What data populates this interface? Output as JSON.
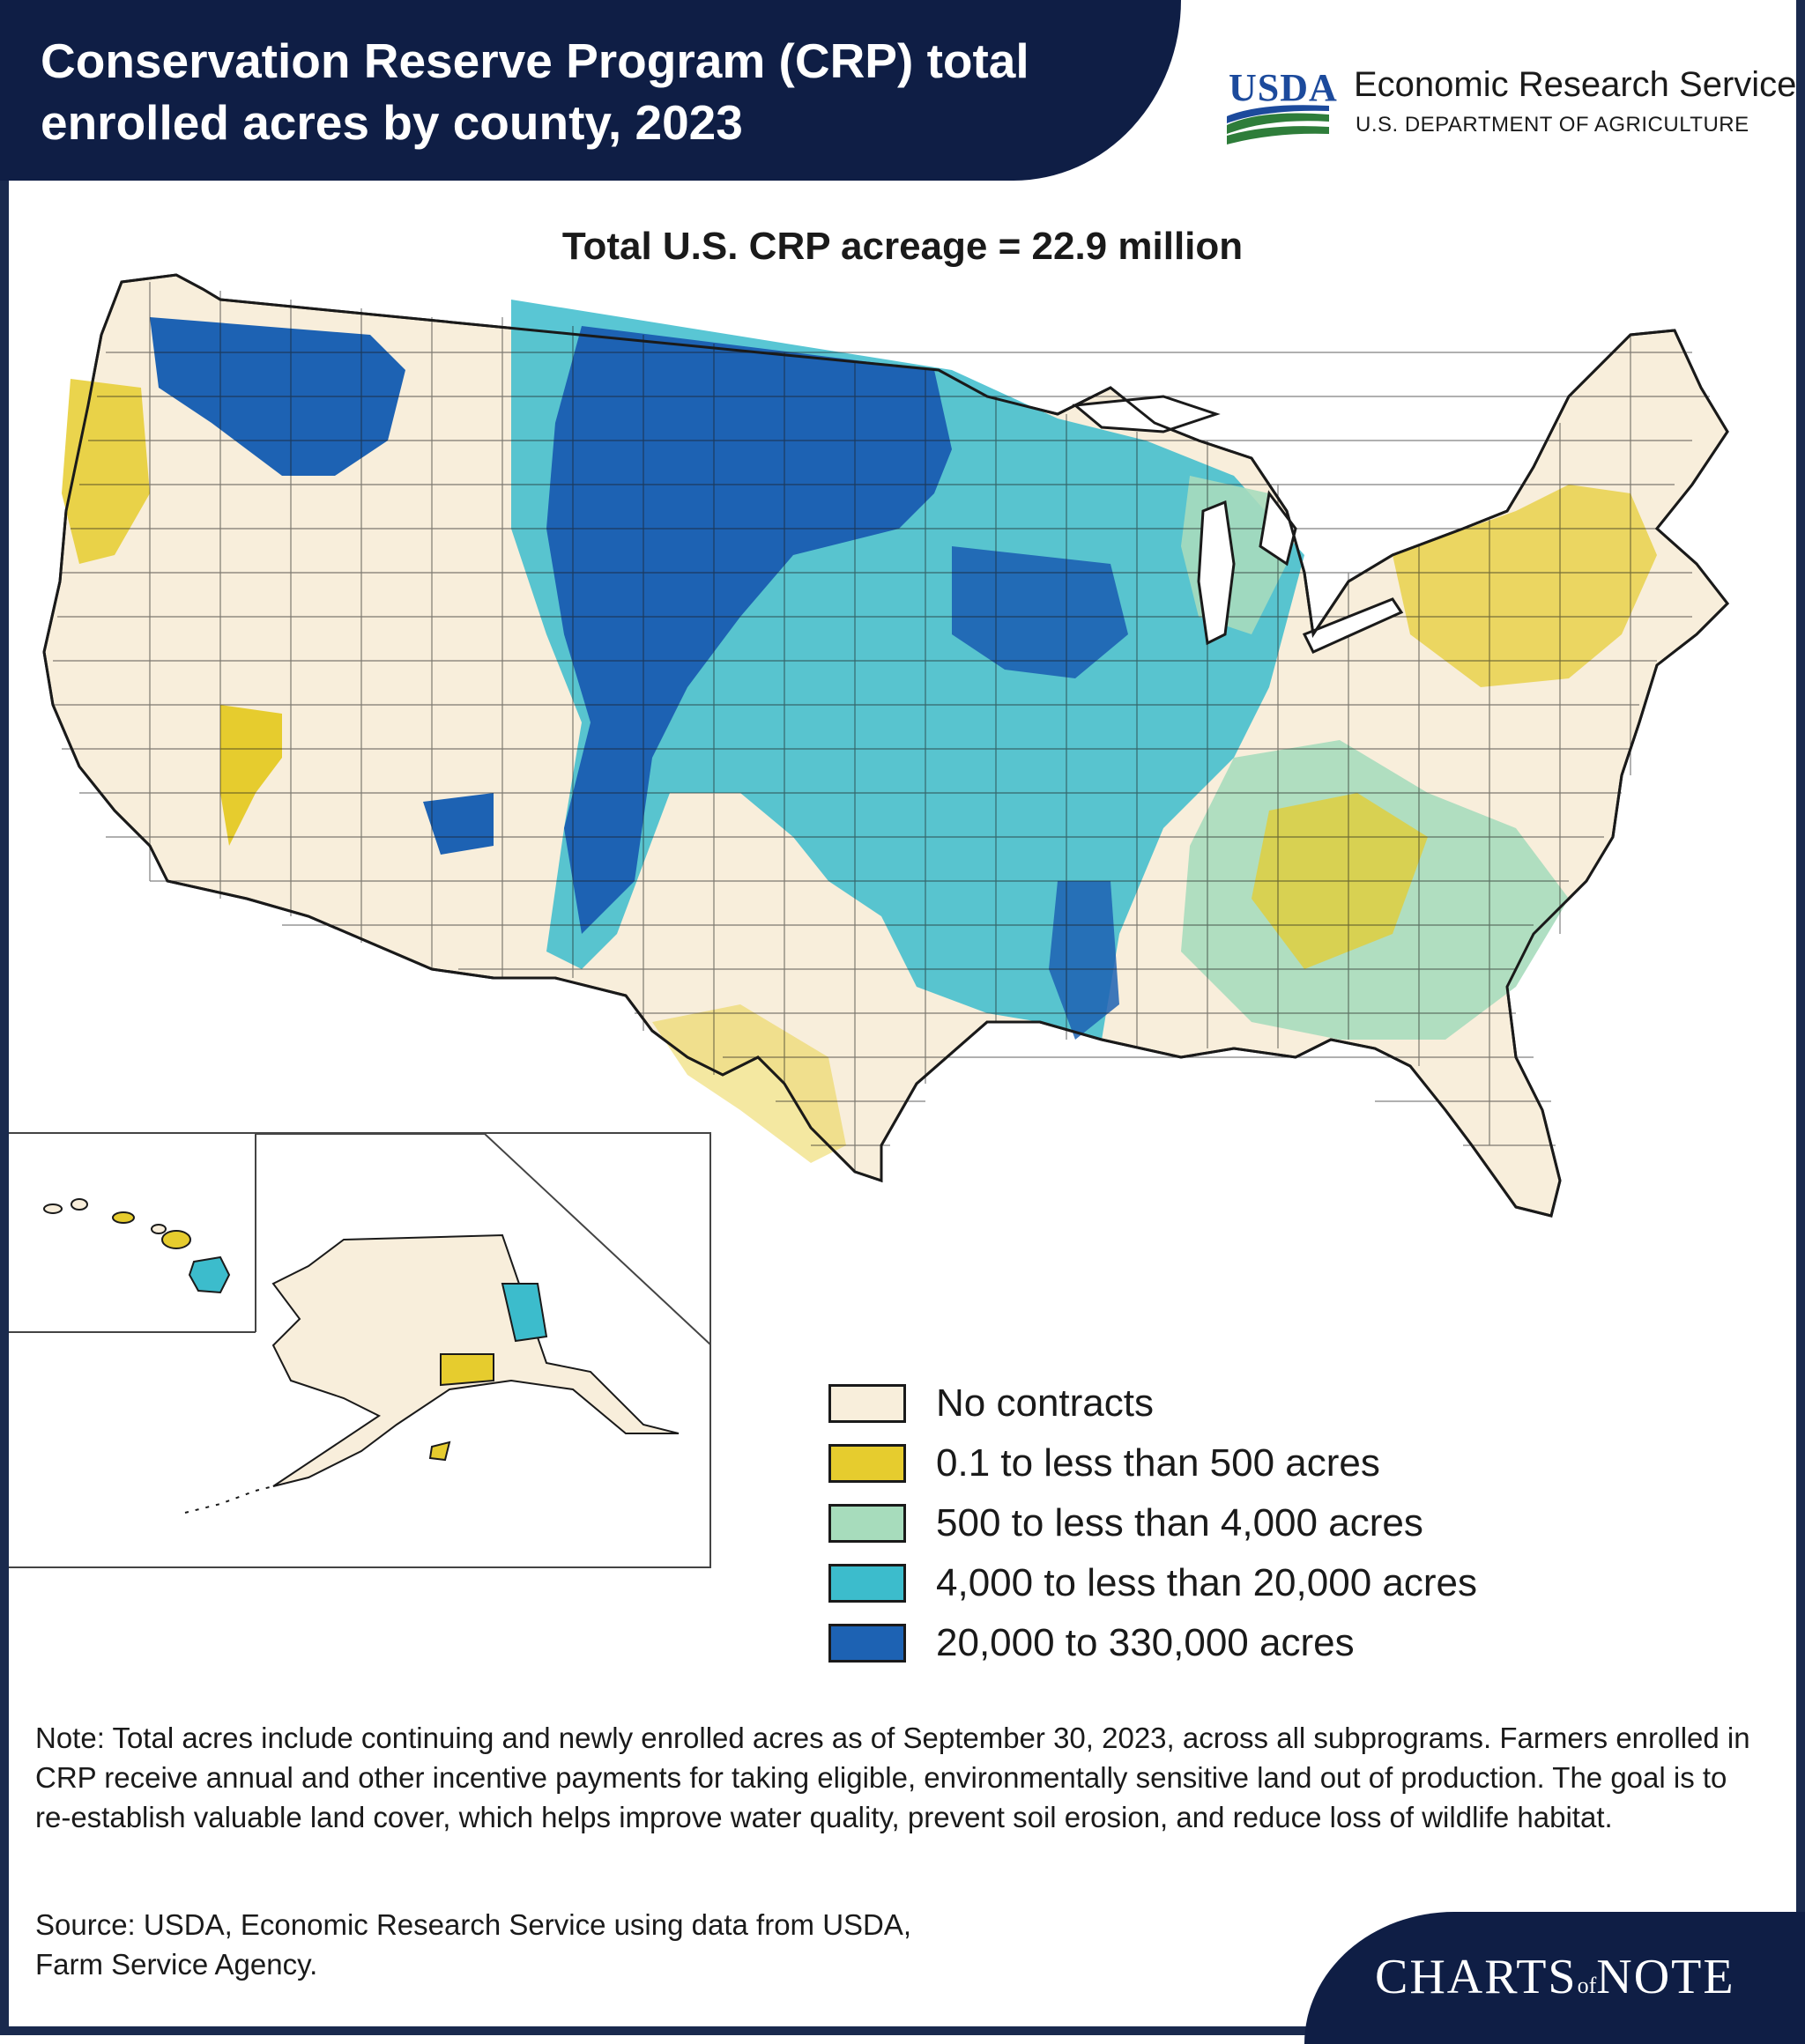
{
  "header": {
    "title_line1": "Conservation Reserve Program (CRP) total",
    "title_line2": "enrolled acres by county, 2023"
  },
  "logo": {
    "usda": "USDA",
    "agency": "Economic Research Service",
    "department": "U.S. DEPARTMENT OF AGRICULTURE"
  },
  "map": {
    "subtitle": "Total U.S. CRP acreage = 22.9 million",
    "colors": {
      "none": "#f8eedb",
      "low": "#e6cc2e",
      "mid": "#a7dcbc",
      "high": "#3cbccc",
      "top": "#1d62b3",
      "border": "#1a1a1a"
    },
    "legend": [
      {
        "label": "No contracts",
        "color": "#f8eedb"
      },
      {
        "label": "0.1 to less than 500 acres",
        "color": "#e6cc2e"
      },
      {
        "label": "500 to less than 4,000 acres",
        "color": "#a7dcbc"
      },
      {
        "label": "4,000 to less than 20,000 acres",
        "color": "#3cbccc"
      },
      {
        "label": "20,000 to 330,000 acres",
        "color": "#1d62b3"
      }
    ]
  },
  "note": "Note: Total acres include continuing and newly enrolled acres as of September 30, 2023, across all subprograms. Farmers enrolled in CRP receive annual and other incentive payments for taking eligible, environmentally sensitive land out of production. The goal is to re-establish valuable land cover, which helps improve water quality, prevent soil erosion, and reduce loss of wildlife habitat.",
  "source_line1": "Source: USDA, Economic Research Service using data from USDA,",
  "source_line2": "Farm Service Agency.",
  "badge": {
    "charts": "CHARTS",
    "of": "of",
    "note": "NOTE"
  }
}
